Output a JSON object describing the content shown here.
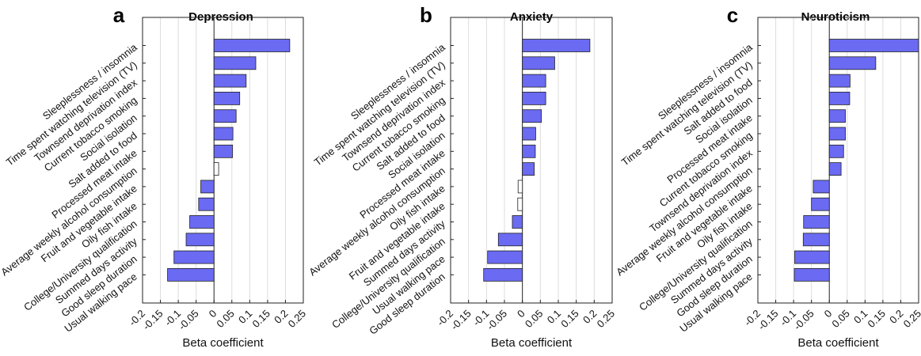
{
  "chart_data": [
    {
      "type": "bar",
      "orientation": "horizontal",
      "panel_label": "a",
      "title": "Depression",
      "xlabel": "Beta coefficient",
      "xlim": [
        -0.2,
        0.25
      ],
      "xticks": [
        "-0.2",
        "-0.15",
        "-0.1",
        "-0.05",
        "0",
        "0.05",
        "0.1",
        "0.15",
        "0.2",
        "0.25"
      ],
      "grid": "vertical",
      "bar_color": "#6a6af2",
      "categories": [
        "Sleeplessness / insomnia",
        "Time spent watching television (TV)",
        "Townsend deprivation index",
        "Current tobacco smoking",
        "Social isolation",
        "Salt added to food",
        "Processed meat intake",
        "Average weekly alcohol consumption",
        "Fruit and vegetable intake",
        "Oily fish intake",
        "College/University qualification",
        "Summed days activity",
        "Good sleep duration",
        "Usual walking pace"
      ],
      "values": [
        0.212,
        0.117,
        0.09,
        0.072,
        0.062,
        0.053,
        0.052,
        0.013,
        -0.037,
        -0.043,
        -0.068,
        -0.078,
        -0.112,
        -0.13
      ],
      "significant": [
        true,
        true,
        true,
        true,
        true,
        true,
        true,
        false,
        true,
        true,
        true,
        true,
        true,
        true
      ]
    },
    {
      "type": "bar",
      "orientation": "horizontal",
      "panel_label": "b",
      "title": "Anxiety",
      "xlabel": "Beta coefficient",
      "xlim": [
        -0.2,
        0.25
      ],
      "xticks": [
        "-0.2",
        "-0.15",
        "-0.1",
        "-0.05",
        "0",
        "0.05",
        "0.1",
        "0.15",
        "0.2",
        "0.25"
      ],
      "grid": "vertical",
      "bar_color": "#6a6af2",
      "categories": [
        "Sleeplessness / insomnia",
        "Time spent watching television (TV)",
        "Townsend deprivation index",
        "Current tobacco smoking",
        "Salt added to food",
        "Social isolation",
        "Processed meat intake",
        "Average weekly alcohol consumption",
        "Oily fish intake",
        "Fruit and vegetable intake",
        "Summed days activity",
        "College/University qualification",
        "Usual walking pace",
        "Good sleep duration"
      ],
      "values": [
        0.188,
        0.09,
        0.065,
        0.065,
        0.053,
        0.037,
        0.036,
        0.033,
        -0.012,
        -0.013,
        -0.028,
        -0.067,
        -0.097,
        -0.108
      ],
      "significant": [
        true,
        true,
        true,
        true,
        true,
        true,
        true,
        true,
        false,
        false,
        true,
        true,
        true,
        true
      ]
    },
    {
      "type": "bar",
      "orientation": "horizontal",
      "panel_label": "c",
      "title": "Neuroticism",
      "xlabel": "Beta coefficient",
      "xlim": [
        -0.2,
        0.25
      ],
      "xticks": [
        "-0.2",
        "-0.15",
        "-0.1",
        "-0.05",
        "0",
        "0.05",
        "0.1",
        "0.15",
        "0.2",
        "0.25"
      ],
      "grid": "vertical",
      "bar_color": "#6a6af2",
      "categories": [
        "Sleeplessness / insomnia",
        "Time spent watching television (TV)",
        "Salt added to food",
        "Social isolation",
        "Processed meat intake",
        "Current tobacco smoking",
        "Townsend deprivation index",
        "Average weekly alcohol consumption",
        "Fruit and vegetable intake",
        "Oily fish intake",
        "College/University qualification",
        "Summed days activity",
        "Good sleep duration",
        "Usual walking pace"
      ],
      "values": [
        0.25,
        0.13,
        0.058,
        0.057,
        0.045,
        0.045,
        0.04,
        0.033,
        -0.045,
        -0.05,
        -0.072,
        -0.073,
        -0.097,
        -0.098
      ],
      "significant": [
        true,
        true,
        true,
        true,
        true,
        true,
        true,
        true,
        true,
        true,
        true,
        true,
        true,
        true
      ]
    }
  ]
}
